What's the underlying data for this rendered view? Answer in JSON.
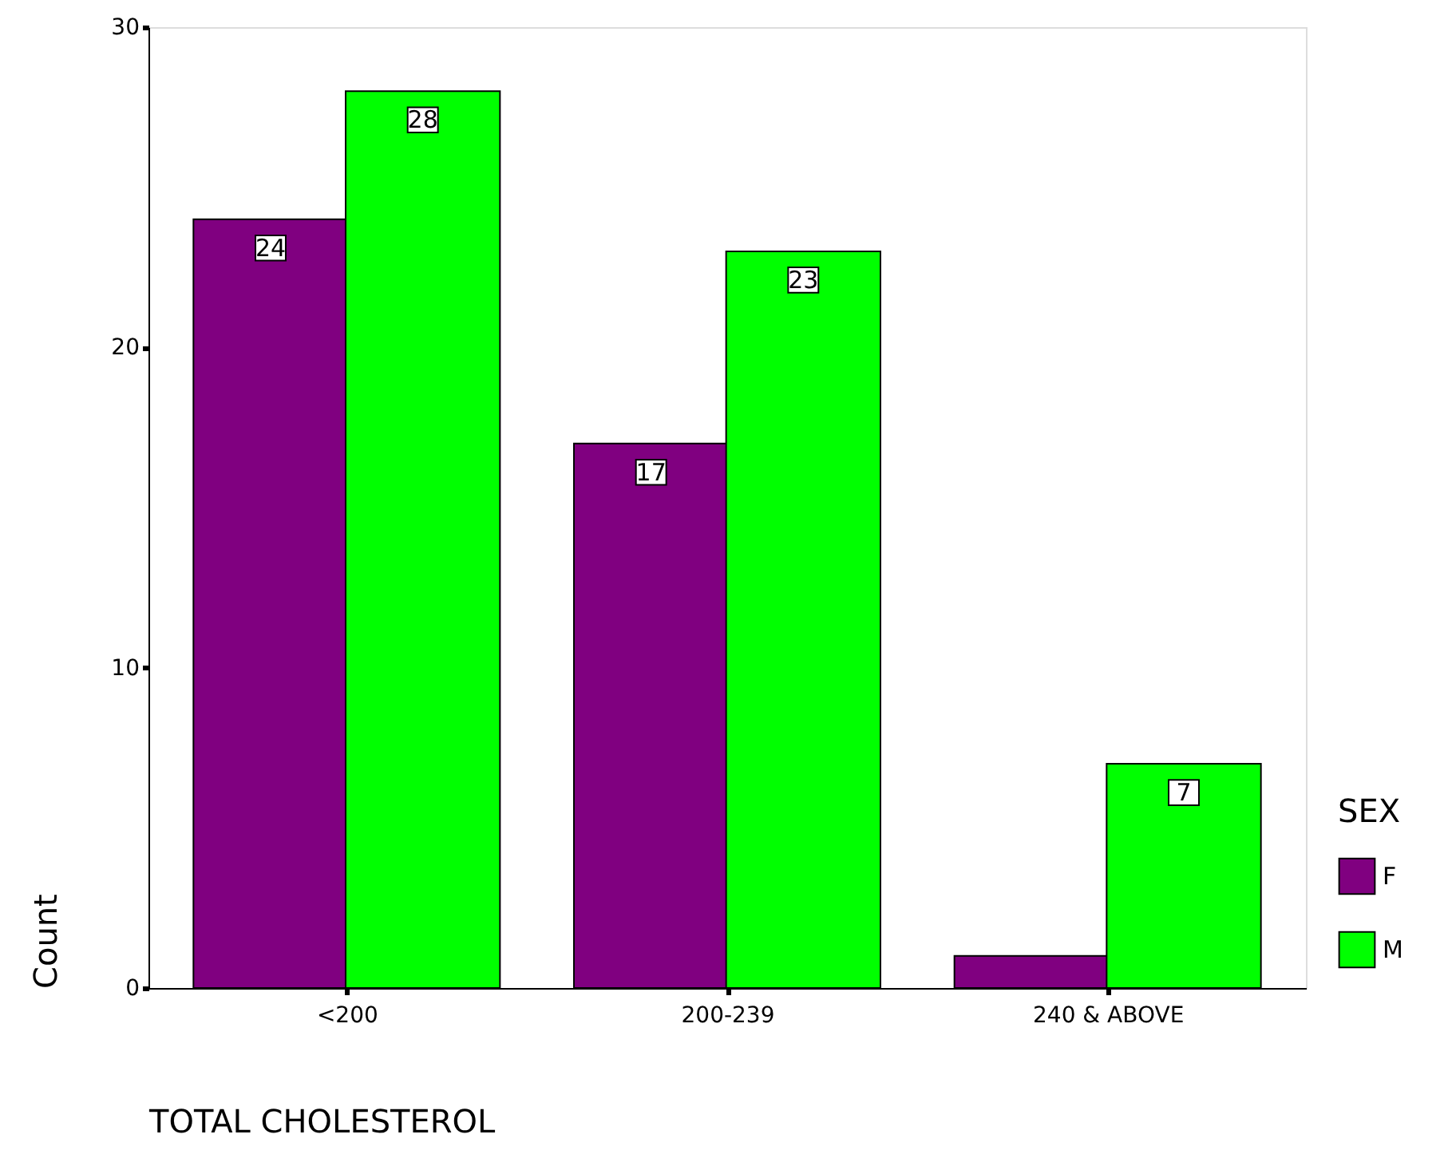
{
  "chart_data": {
    "type": "bar",
    "xlabel": "TOTAL CHOLESTEROL",
    "ylabel": "Count",
    "legend_title": "SEX",
    "categories": [
      "<200",
      "200-239",
      "240 & ABOVE"
    ],
    "series": [
      {
        "name": "F",
        "color": "#800080",
        "values": [
          24,
          17,
          1
        ],
        "value_labels": [
          "24",
          "17",
          null
        ]
      },
      {
        "name": "M",
        "color": "#00ff00",
        "values": [
          28,
          23,
          7
        ],
        "value_labels": [
          "28",
          "23",
          "7"
        ]
      }
    ],
    "ylim": [
      0,
      30
    ],
    "yticks": [
      0,
      10,
      20,
      30
    ],
    "grid": false,
    "legend": "bottom right"
  }
}
